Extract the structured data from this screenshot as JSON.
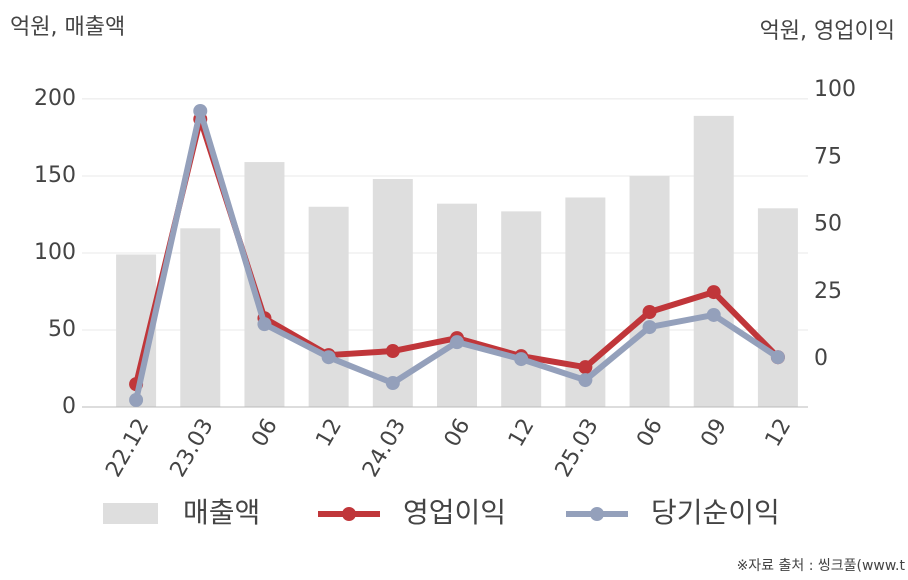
{
  "chart_data": {
    "type": "bar",
    "left_axis_title": "억원, 매출액",
    "right_axis_title": "억원, 영업이익",
    "source": "※자료 출처 : 씽크풀(www.t",
    "categories": [
      "22.12",
      "23.03",
      "06",
      "12",
      "24.03",
      "06",
      "12",
      "25.03",
      "06",
      "09",
      "12"
    ],
    "series": [
      {
        "name": "매출액",
        "type": "bar",
        "color": "#dedede",
        "values": [
          99,
          116,
          159,
          130,
          148,
          132,
          127,
          136,
          150,
          189,
          129
        ]
      },
      {
        "name": "영업이익",
        "type": "line",
        "axis": "y2",
        "color": "#c0363a",
        "values": [
          -9.3,
          89.2,
          15.2,
          1.5,
          3,
          7.8,
          1.1,
          -3,
          17.5,
          24.9,
          0.7
        ]
      },
      {
        "name": "당기순이익",
        "type": "line",
        "axis": "y2",
        "color": "#94a0bb",
        "values": [
          -15.2,
          92.2,
          13,
          0.7,
          -8.9,
          6.3,
          0,
          -7.8,
          11.9,
          16.4,
          0.7
        ]
      }
    ],
    "ylim": [
      0,
      205.8
    ],
    "yticks": [
      0,
      50,
      100,
      150,
      200
    ],
    "y2lim": [
      -17.8,
      100
    ],
    "y2ticks": [
      0,
      25,
      50,
      75,
      100
    ],
    "grid": true
  }
}
